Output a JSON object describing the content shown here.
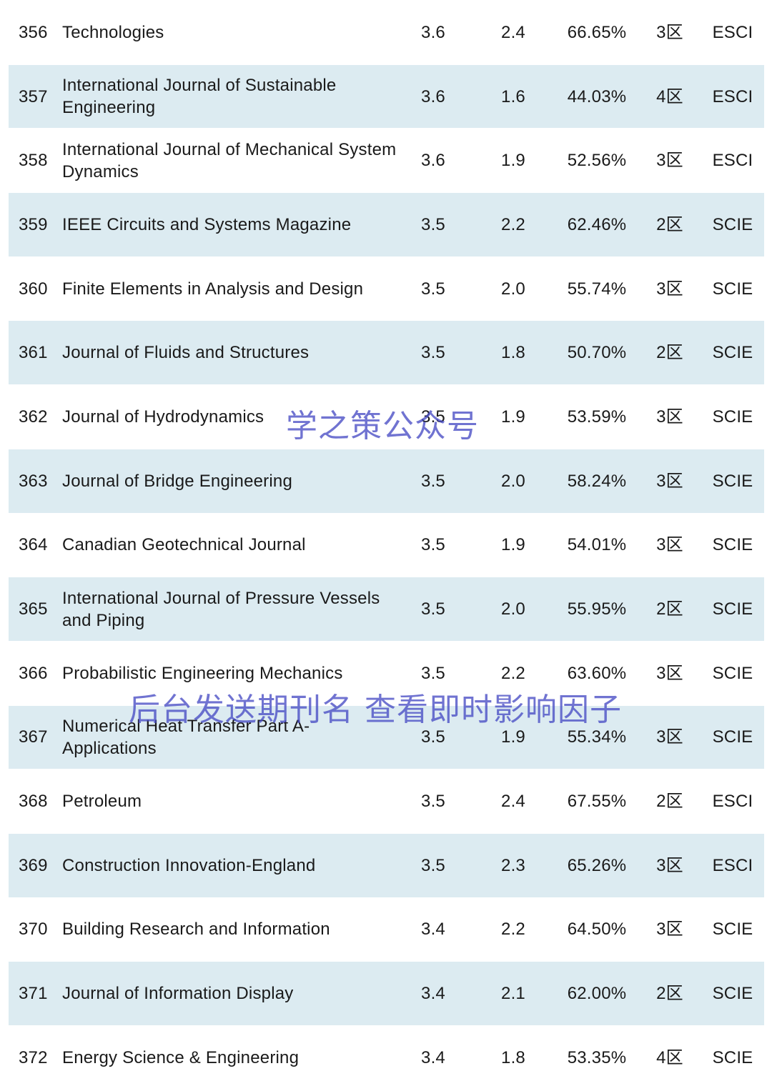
{
  "rows": [
    {
      "rank": "356",
      "name": "Technologies",
      "if": "3.6",
      "if5": "2.4",
      "pct": "66.65%",
      "zone": "3区",
      "index": "ESCI"
    },
    {
      "rank": "357",
      "name": "International Journal of Sustainable Engineering",
      "if": "3.6",
      "if5": "1.6",
      "pct": "44.03%",
      "zone": "4区",
      "index": "ESCI"
    },
    {
      "rank": "358",
      "name": "International Journal of Mechanical System Dynamics",
      "if": "3.6",
      "if5": "1.9",
      "pct": "52.56%",
      "zone": "3区",
      "index": "ESCI"
    },
    {
      "rank": "359",
      "name": "IEEE Circuits and Systems Magazine",
      "if": "3.5",
      "if5": "2.2",
      "pct": "62.46%",
      "zone": "2区",
      "index": "SCIE"
    },
    {
      "rank": "360",
      "name": "Finite Elements in Analysis and Design",
      "if": "3.5",
      "if5": "2.0",
      "pct": "55.74%",
      "zone": "3区",
      "index": "SCIE"
    },
    {
      "rank": "361",
      "name": "Journal of Fluids and Structures",
      "if": "3.5",
      "if5": "1.8",
      "pct": "50.70%",
      "zone": "2区",
      "index": "SCIE"
    },
    {
      "rank": "362",
      "name": "Journal of Hydrodynamics",
      "if": "3.5",
      "if5": "1.9",
      "pct": "53.59%",
      "zone": "3区",
      "index": "SCIE"
    },
    {
      "rank": "363",
      "name": "Journal of Bridge Engineering",
      "if": "3.5",
      "if5": "2.0",
      "pct": "58.24%",
      "zone": "3区",
      "index": "SCIE"
    },
    {
      "rank": "364",
      "name": "Canadian Geotechnical Journal",
      "if": "3.5",
      "if5": "1.9",
      "pct": "54.01%",
      "zone": "3区",
      "index": "SCIE"
    },
    {
      "rank": "365",
      "name": "International Journal of Pressure Vessels and Piping",
      "if": "3.5",
      "if5": "2.0",
      "pct": "55.95%",
      "zone": "2区",
      "index": "SCIE"
    },
    {
      "rank": "366",
      "name": "Probabilistic Engineering Mechanics",
      "if": "3.5",
      "if5": "2.2",
      "pct": "63.60%",
      "zone": "3区",
      "index": "SCIE"
    },
    {
      "rank": "367",
      "name": "Numerical Heat Transfer Part A-Applications",
      "if": "3.5",
      "if5": "1.9",
      "pct": "55.34%",
      "zone": "3区",
      "index": "SCIE"
    },
    {
      "rank": "368",
      "name": "Petroleum",
      "if": "3.5",
      "if5": "2.4",
      "pct": "67.55%",
      "zone": "2区",
      "index": "ESCI"
    },
    {
      "rank": "369",
      "name": "Construction Innovation-England",
      "if": "3.5",
      "if5": "2.3",
      "pct": "65.26%",
      "zone": "3区",
      "index": "ESCI"
    },
    {
      "rank": "370",
      "name": "Building Research and Information",
      "if": "3.4",
      "if5": "2.2",
      "pct": "64.50%",
      "zone": "3区",
      "index": "SCIE"
    },
    {
      "rank": "371",
      "name": "Journal of Information Display",
      "if": "3.4",
      "if5": "2.1",
      "pct": "62.00%",
      "zone": "2区",
      "index": "SCIE"
    },
    {
      "rank": "372",
      "name": "Energy Science & Engineering",
      "if": "3.4",
      "if5": "1.8",
      "pct": "53.35%",
      "zone": "4区",
      "index": "SCIE"
    }
  ],
  "watermarks": {
    "account": "学之策公众号",
    "hint": "后台发送期刊名 查看即时影响因子"
  }
}
